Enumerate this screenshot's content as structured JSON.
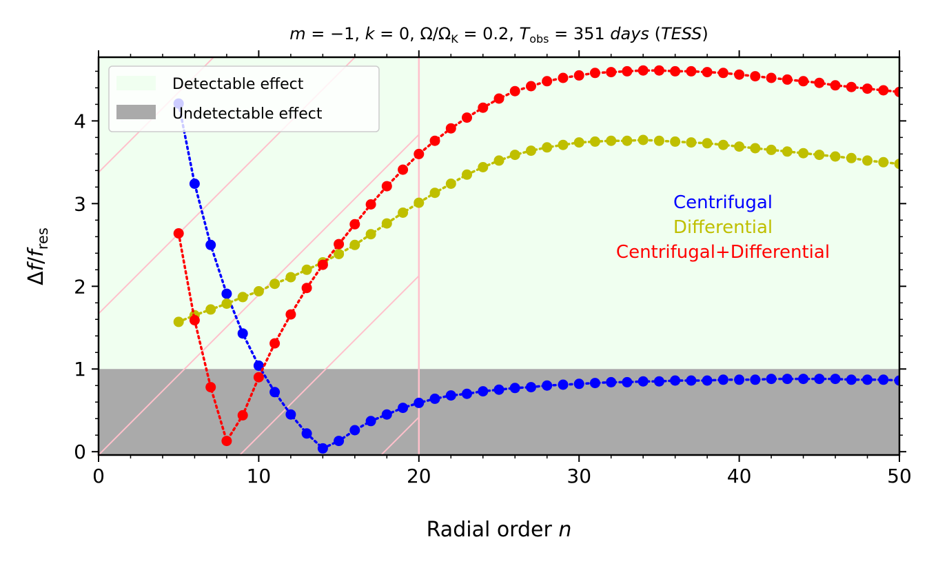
{
  "chart_data": {
    "type": "scatter",
    "title": "m = −1, k = 0, Ω/ΩK = 0.2, Tobs = 351 days (TESS)",
    "title_parts": {
      "m_label": "m",
      "m_value": " = −1, ",
      "k_label": "k",
      "k_value": " = 0, Ω/Ω",
      "omega_sub": "K",
      "omega_value": " = 0.2, ",
      "t_label": "T",
      "t_sub": "obs",
      "t_value": " = 351 ",
      "days": "days",
      "paren_open": " (",
      "tess": "TESS",
      "paren_close": ")"
    },
    "xlabel": "Radial order n",
    "xlabel_parts": {
      "text": "Radial order ",
      "var": "n"
    },
    "ylabel": "Δf/fres",
    "ylabel_parts": {
      "delta": "Δ",
      "f1": "f",
      "slash": "/",
      "f2": "f",
      "sub": "res"
    },
    "xlim": [
      0,
      50
    ],
    "ylim": [
      -0.04,
      4.77
    ],
    "xticks": [
      "0",
      "10",
      "20",
      "30",
      "40",
      "50"
    ],
    "yticks": [
      "0",
      "1",
      "2",
      "3",
      "4"
    ],
    "regions": {
      "detectable": {
        "label": "Detectable effect",
        "y_from": 1,
        "color": "#f0fff0"
      },
      "undetectable": {
        "label": "Undetectable effect",
        "y_to": 1,
        "color": "#aaaaaa"
      },
      "hatched_x_range": [
        0,
        20
      ],
      "hatch_color": "#ffc0cb"
    },
    "legend_position": "upper-left",
    "annotations": [
      {
        "text": "Centrifugal",
        "color": "#0000ff"
      },
      {
        "text": "Differential",
        "color": "#bfbf00"
      },
      {
        "text": "Centrifugal+Differential",
        "color": "#ff0000"
      }
    ],
    "x": [
      5,
      6,
      7,
      8,
      9,
      10,
      11,
      12,
      13,
      14,
      15,
      16,
      17,
      18,
      19,
      20,
      21,
      22,
      23,
      24,
      25,
      26,
      27,
      28,
      29,
      30,
      31,
      32,
      33,
      34,
      35,
      36,
      37,
      38,
      39,
      40,
      41,
      42,
      43,
      44,
      45,
      46,
      47,
      48,
      49,
      50
    ],
    "series": [
      {
        "name": "Centrifugal",
        "color": "#0000ff",
        "values": [
          4.21,
          3.24,
          2.5,
          1.91,
          1.43,
          1.04,
          0.72,
          0.45,
          0.22,
          0.04,
          0.13,
          0.26,
          0.37,
          0.45,
          0.53,
          0.59,
          0.64,
          0.68,
          0.7,
          0.73,
          0.75,
          0.77,
          0.78,
          0.8,
          0.81,
          0.82,
          0.83,
          0.84,
          0.84,
          0.85,
          0.85,
          0.86,
          0.86,
          0.86,
          0.87,
          0.87,
          0.87,
          0.88,
          0.88,
          0.88,
          0.88,
          0.88,
          0.87,
          0.87,
          0.87,
          0.86
        ]
      },
      {
        "name": "Differential",
        "color": "#bfbf00",
        "values": [
          1.57,
          1.65,
          1.72,
          1.79,
          1.87,
          1.94,
          2.03,
          2.11,
          2.2,
          2.29,
          2.39,
          2.5,
          2.63,
          2.76,
          2.89,
          3.01,
          3.13,
          3.24,
          3.35,
          3.44,
          3.52,
          3.59,
          3.64,
          3.68,
          3.71,
          3.74,
          3.75,
          3.76,
          3.76,
          3.77,
          3.76,
          3.75,
          3.74,
          3.73,
          3.71,
          3.69,
          3.67,
          3.65,
          3.63,
          3.61,
          3.59,
          3.57,
          3.55,
          3.52,
          3.5,
          3.48
        ]
      },
      {
        "name": "Centrifugal+Differential",
        "color": "#ff0000",
        "values": [
          2.64,
          1.59,
          0.78,
          0.13,
          0.44,
          0.9,
          1.31,
          1.66,
          1.98,
          2.26,
          2.51,
          2.75,
          2.99,
          3.21,
          3.41,
          3.6,
          3.76,
          3.91,
          4.04,
          4.16,
          4.27,
          4.36,
          4.42,
          4.48,
          4.52,
          4.55,
          4.58,
          4.59,
          4.6,
          4.61,
          4.61,
          4.6,
          4.6,
          4.59,
          4.58,
          4.56,
          4.54,
          4.52,
          4.5,
          4.48,
          4.46,
          4.43,
          4.41,
          4.39,
          4.37,
          4.35
        ]
      }
    ]
  }
}
